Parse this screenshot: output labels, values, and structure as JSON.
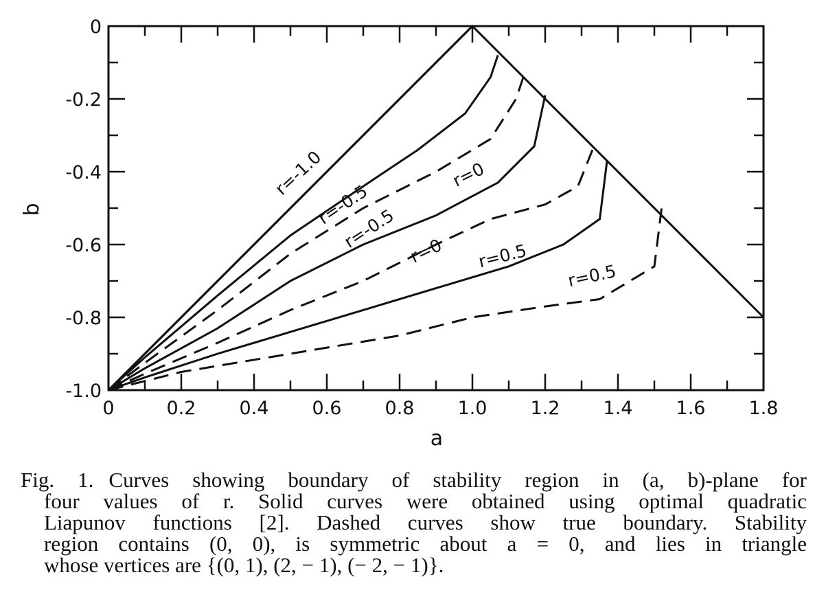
{
  "chart_data": {
    "type": "line",
    "xlabel": "a",
    "ylabel": "b",
    "xlim": [
      0,
      1.8
    ],
    "ylim": [
      -1.0,
      0
    ],
    "x_ticks": [
      "0",
      "0.2",
      "0.4",
      "0.6",
      "0.8",
      "1.0",
      "1.2",
      "1.4",
      "1.6",
      "1.8"
    ],
    "y_ticks": [
      "0",
      "-0.2",
      "-0.4",
      "-0.6",
      "-0.8",
      "-1.0"
    ],
    "grid": false,
    "boundary": {
      "style": "solid",
      "points": [
        [
          0,
          -1.0
        ],
        [
          1.0,
          0
        ],
        [
          1.8,
          -0.8
        ]
      ]
    },
    "series": [
      {
        "style": "solid",
        "label": "r=-1.0",
        "points": [
          [
            0,
            -1.0
          ],
          [
            1.0,
            0
          ]
        ]
      },
      {
        "style": "solid",
        "label": "r=-0.5",
        "points": [
          [
            0,
            -1.0
          ],
          [
            0.1,
            -0.91
          ],
          [
            0.3,
            -0.74
          ],
          [
            0.5,
            -0.575
          ],
          [
            0.7,
            -0.44
          ],
          [
            0.85,
            -0.34
          ],
          [
            0.98,
            -0.24
          ],
          [
            1.05,
            -0.14
          ],
          [
            1.07,
            -0.08
          ]
        ]
      },
      {
        "style": "dashed",
        "label": "r=-0.5",
        "points": [
          [
            0,
            -1.0
          ],
          [
            0.1,
            -0.925
          ],
          [
            0.3,
            -0.78
          ],
          [
            0.5,
            -0.625
          ],
          [
            0.7,
            -0.5
          ],
          [
            0.9,
            -0.4
          ],
          [
            1.05,
            -0.31
          ],
          [
            1.12,
            -0.2
          ],
          [
            1.14,
            -0.14
          ]
        ]
      },
      {
        "style": "solid",
        "label": "r=0",
        "points": [
          [
            0,
            -1.0
          ],
          [
            0.1,
            -0.94
          ],
          [
            0.3,
            -0.83
          ],
          [
            0.5,
            -0.7
          ],
          [
            0.7,
            -0.6
          ],
          [
            0.9,
            -0.52
          ],
          [
            1.07,
            -0.43
          ],
          [
            1.17,
            -0.33
          ],
          [
            1.2,
            -0.19
          ]
        ]
      },
      {
        "style": "dashed",
        "label": "r=0",
        "points": [
          [
            0,
            -1.0
          ],
          [
            0.1,
            -0.955
          ],
          [
            0.3,
            -0.87
          ],
          [
            0.5,
            -0.78
          ],
          [
            0.7,
            -0.7
          ],
          [
            0.9,
            -0.6
          ],
          [
            1.05,
            -0.53
          ],
          [
            1.2,
            -0.49
          ],
          [
            1.29,
            -0.44
          ],
          [
            1.33,
            -0.34
          ]
        ]
      },
      {
        "style": "solid",
        "label": "r=0.5",
        "points": [
          [
            0,
            -1.0
          ],
          [
            0.1,
            -0.965
          ],
          [
            0.3,
            -0.9
          ],
          [
            0.5,
            -0.84
          ],
          [
            0.7,
            -0.78
          ],
          [
            0.9,
            -0.72
          ],
          [
            1.1,
            -0.66
          ],
          [
            1.25,
            -0.6
          ],
          [
            1.35,
            -0.53
          ],
          [
            1.37,
            -0.37
          ]
        ]
      },
      {
        "style": "dashed",
        "label": "r=0.5",
        "points": [
          [
            0,
            -1.0
          ],
          [
            0.2,
            -0.95
          ],
          [
            0.5,
            -0.9
          ],
          [
            0.8,
            -0.85
          ],
          [
            1.0,
            -0.8
          ],
          [
            1.2,
            -0.77
          ],
          [
            1.35,
            -0.75
          ],
          [
            1.5,
            -0.66
          ],
          [
            1.52,
            -0.5
          ]
        ]
      }
    ]
  },
  "caption": {
    "fig_no": "Fig. 1.",
    "line1": "Curves showing boundary of stability region in (a, b)-plane for",
    "line2": "four values of r. Solid curves were obtained using optimal quadratic",
    "line3": "Liapunov functions [2]. Dashed curves show true boundary. Stability",
    "line4": "region contains (0, 0), is symmetric about a = 0, and lies in triangle",
    "line5": "whose vertices are {(0, 1), (2, − 1), (− 2, − 1)}."
  }
}
